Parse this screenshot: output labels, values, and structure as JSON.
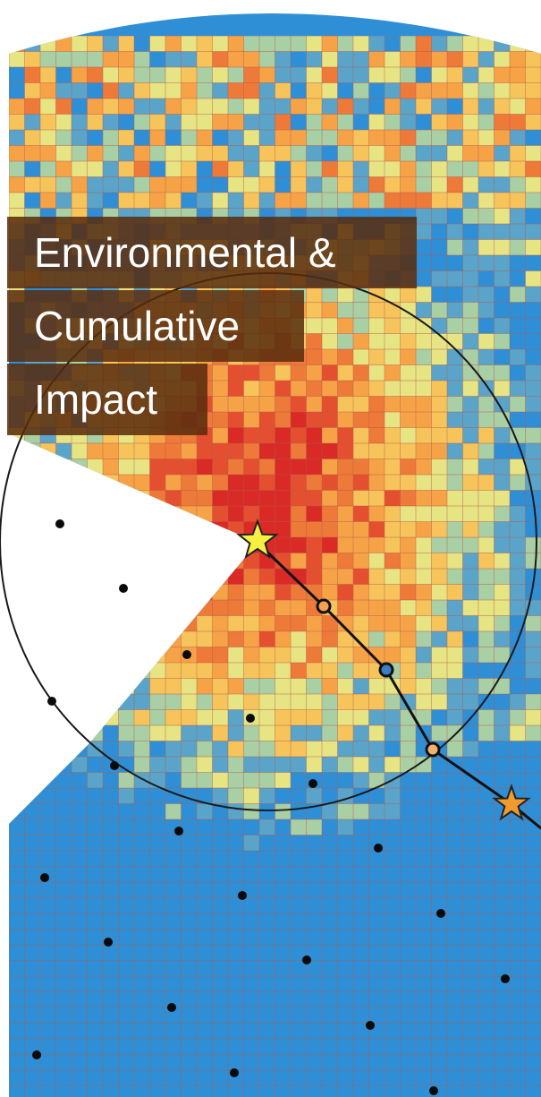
{
  "title_lines": [
    "Environmental &",
    "Cumulative",
    "Impact"
  ],
  "colors": {
    "band": "#582c0e",
    "grid_line": "#b35a4a",
    "star_primary": "#f7f041",
    "star_secondary": "#f39a2f",
    "palette": [
      "#2f8fd6",
      "#5aa4c9",
      "#a9cfa4",
      "#e7e483",
      "#f6c45a",
      "#f6a347",
      "#ee7a3a",
      "#e4502f",
      "#d92a26"
    ]
  },
  "icons": {
    "primary_marker": "star-icon",
    "secondary_marker": "star-icon",
    "waypoint_marker": "circle-icon",
    "receptor_marker": "dot-icon"
  }
}
